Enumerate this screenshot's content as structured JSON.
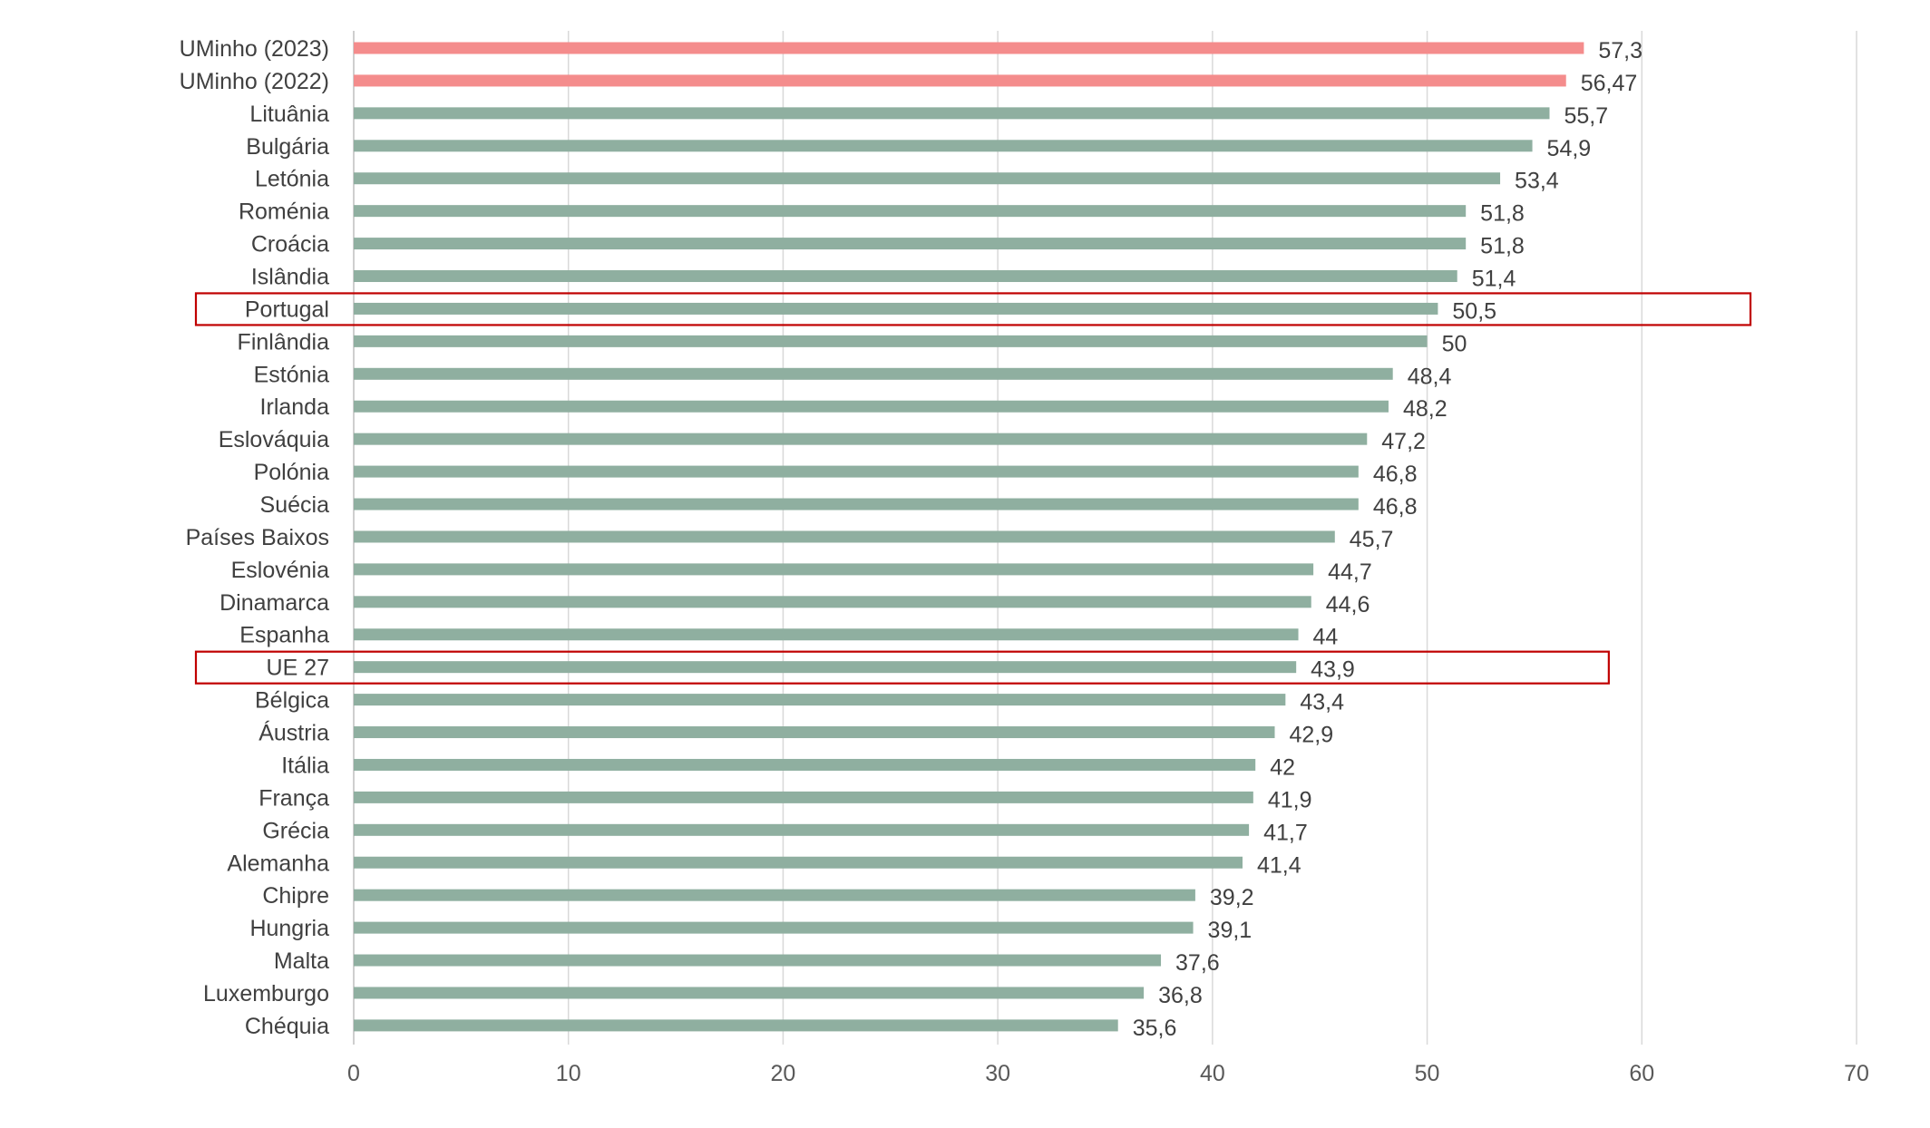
{
  "chart_data": {
    "type": "bar",
    "orientation": "horizontal",
    "title": "",
    "xlabel": "",
    "ylabel": "",
    "xlim": [
      0,
      70
    ],
    "x_ticks": [
      0,
      10,
      20,
      30,
      40,
      50,
      60,
      70
    ],
    "grid": true,
    "legend": "none",
    "categories": [
      "UMinho (2023)",
      "UMinho (2022)",
      "Lituânia",
      "Bulgária",
      "Letónia",
      "Roménia",
      "Croácia",
      "Islândia",
      "Portugal",
      "Finlândia",
      "Estónia",
      "Irlanda",
      "Eslováquia",
      "Polónia",
      "Suécia",
      "Países Baixos",
      "Eslovénia",
      "Dinamarca",
      "Espanha",
      "UE 27",
      "Bélgica",
      "Áustria",
      "Itália",
      "França",
      "Grécia",
      "Alemanha",
      "Chipre",
      "Hungria",
      "Malta",
      "Luxemburgo",
      "Chéquia"
    ],
    "values": [
      57.3,
      56.47,
      55.7,
      54.9,
      53.4,
      51.8,
      51.8,
      51.4,
      50.5,
      50,
      48.4,
      48.2,
      47.2,
      46.8,
      46.8,
      45.7,
      44.7,
      44.6,
      44,
      43.9,
      43.4,
      42.9,
      42,
      41.9,
      41.7,
      41.4,
      39.2,
      39.1,
      37.6,
      36.8,
      35.6
    ],
    "value_labels": [
      "57,3",
      "56,47",
      "55,7",
      "54,9",
      "53,4",
      "51,8",
      "51,8",
      "51,4",
      "50,5",
      "50",
      "48,4",
      "48,2",
      "47,2",
      "46,8",
      "46,8",
      "45,7",
      "44,7",
      "44,6",
      "44",
      "43,9",
      "43,4",
      "42,9",
      "42",
      "41,9",
      "41,7",
      "41,4",
      "39,2",
      "39,1",
      "37,6",
      "36,8",
      "35,6"
    ],
    "bar_colors": [
      "#f48c8c",
      "#f48c8c",
      "#8fafa0",
      "#8fafa0",
      "#8fafa0",
      "#8fafa0",
      "#8fafa0",
      "#8fafa0",
      "#8fafa0",
      "#8fafa0",
      "#8fafa0",
      "#8fafa0",
      "#8fafa0",
      "#8fafa0",
      "#8fafa0",
      "#8fafa0",
      "#8fafa0",
      "#8fafa0",
      "#8fafa0",
      "#8fafa0",
      "#8fafa0",
      "#8fafa0",
      "#8fafa0",
      "#8fafa0",
      "#8fafa0",
      "#8fafa0",
      "#8fafa0",
      "#8fafa0",
      "#8fafa0",
      "#8fafa0",
      "#8fafa0"
    ],
    "highlighted_categories": [
      "Portugal",
      "UE 27"
    ],
    "highlight_color": "#c00000"
  }
}
